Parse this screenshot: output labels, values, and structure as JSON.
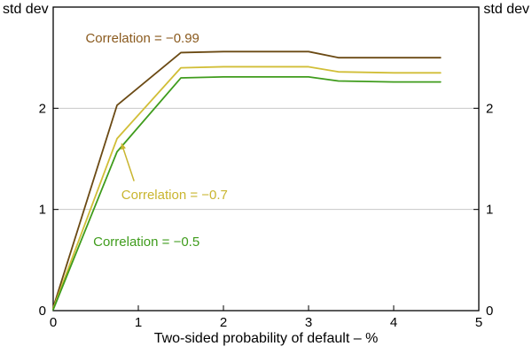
{
  "chart_data": {
    "type": "line",
    "title": "",
    "xlabel": "Two-sided probability of default – %",
    "ylabel_left": "std dev",
    "ylabel_right": "std dev",
    "xlim": [
      0,
      5
    ],
    "ylim": [
      0,
      3
    ],
    "xticks": [
      0,
      1,
      2,
      3,
      4,
      5
    ],
    "yticks": [
      0,
      1,
      2
    ],
    "gridlines_y": [
      1,
      2
    ],
    "grid": "horizontal",
    "legend_position": "none (inline annotations)",
    "frame_color": "#000000",
    "gridline_color": "#c8c8c8",
    "series": [
      {
        "name": "Correlation = −0.99",
        "color": "#6B4A14",
        "points": [
          [
            0,
            0.03
          ],
          [
            0.75,
            2.03
          ],
          [
            1.5,
            2.55
          ],
          [
            2.0,
            2.56
          ],
          [
            3.0,
            2.56
          ],
          [
            3.35,
            2.5
          ],
          [
            4.0,
            2.5
          ],
          [
            4.55,
            2.5
          ]
        ]
      },
      {
        "name": "Correlation = −0.7",
        "color": "#D1BE37",
        "points": [
          [
            0,
            0.02
          ],
          [
            0.75,
            1.7
          ],
          [
            1.5,
            2.4
          ],
          [
            2.0,
            2.41
          ],
          [
            3.0,
            2.41
          ],
          [
            3.35,
            2.36
          ],
          [
            4.0,
            2.35
          ],
          [
            4.55,
            2.35
          ]
        ]
      },
      {
        "name": "Correlation = −0.5",
        "color": "#3F9C1C",
        "points": [
          [
            0,
            0.01
          ],
          [
            0.75,
            1.57
          ],
          [
            1.5,
            2.3
          ],
          [
            2.0,
            2.31
          ],
          [
            3.0,
            2.31
          ],
          [
            3.35,
            2.27
          ],
          [
            4.0,
            2.26
          ],
          [
            4.55,
            2.26
          ]
        ]
      }
    ],
    "annotations": [
      {
        "text": "Correlation = −0.99",
        "color": "#8A5A1E",
        "x": 0.38,
        "y": 2.65,
        "anchor": "start"
      },
      {
        "text": "Correlation = −0.7",
        "color": "#C9B52F",
        "x": 0.8,
        "y": 1.1,
        "anchor": "start",
        "arrow": {
          "from": [
            0.95,
            1.28
          ],
          "to": [
            0.8,
            1.66
          ]
        }
      },
      {
        "text": "Correlation = −0.5",
        "color": "#3F9C1C",
        "x": 0.47,
        "y": 0.64,
        "anchor": "start"
      }
    ]
  }
}
